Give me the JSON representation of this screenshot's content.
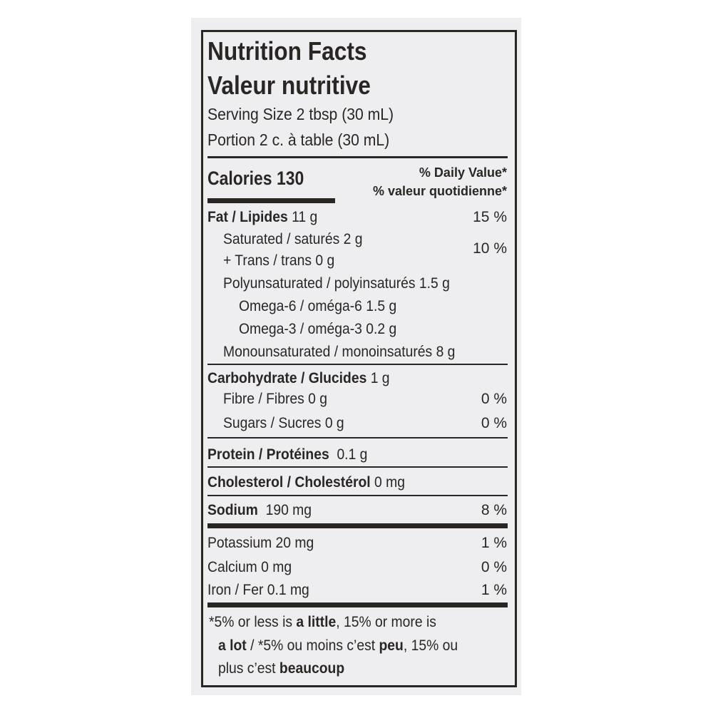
{
  "title_en": "Nutrition Facts",
  "title_fr": "Valeur nutritive",
  "serving_en": "Serving Size 2 tbsp (30 mL)",
  "serving_fr": "Portion 2 c. à table (30 mL)",
  "calories": "Calories 130",
  "dv_en": "% Daily Value*",
  "dv_fr": "% valeur quotidienne*",
  "rows": {
    "fat": {
      "label": "Fat / Lipides",
      "amount": "11 g",
      "dv": "15 %"
    },
    "saturated": {
      "label": "Saturated / saturés 2 g"
    },
    "trans": {
      "label": "+ Trans / trans 0 g"
    },
    "sat_trans_dv": "10 %",
    "poly": {
      "label": "Polyunsaturated / polyinsaturés 1.5 g"
    },
    "omega6": {
      "label": "Omega-6 / oméga-6 1.5 g"
    },
    "omega3": {
      "label": "Omega-3 / oméga-3 0.2 g"
    },
    "mono": {
      "label": "Monounsaturated / monoinsaturés 8 g"
    },
    "carb": {
      "label": "Carbohydrate / Glucides",
      "amount": "1 g"
    },
    "fibre": {
      "label": "Fibre / Fibres 0 g",
      "dv": "0 %"
    },
    "sugars": {
      "label": "Sugars / Sucres 0 g",
      "dv": "0 %"
    },
    "protein": {
      "label": "Protein / Protéines",
      "amount": "0.1 g"
    },
    "cholesterol": {
      "label": "Cholesterol / Cholestérol",
      "amount": "0 mg"
    },
    "sodium": {
      "label": "Sodium",
      "amount": "190 mg",
      "dv": "8 %"
    },
    "potassium": {
      "label": "Potassium  20 mg",
      "dv": "1 %"
    },
    "calcium": {
      "label": "Calcium  0 mg",
      "dv": "0 %"
    },
    "iron": {
      "label": "Iron / Fer  0.1 mg",
      "dv": "1 %"
    }
  },
  "footnote": {
    "p1": "*5% or less is ",
    "b1": "a little",
    "p2": ", 15% or more is",
    "b2": "a lot",
    "p3": " / *5% ou moins c’est ",
    "b3": "peu",
    "p4": ", 15% ou",
    "p5": "plus c’est ",
    "b4": "beaucoup"
  }
}
